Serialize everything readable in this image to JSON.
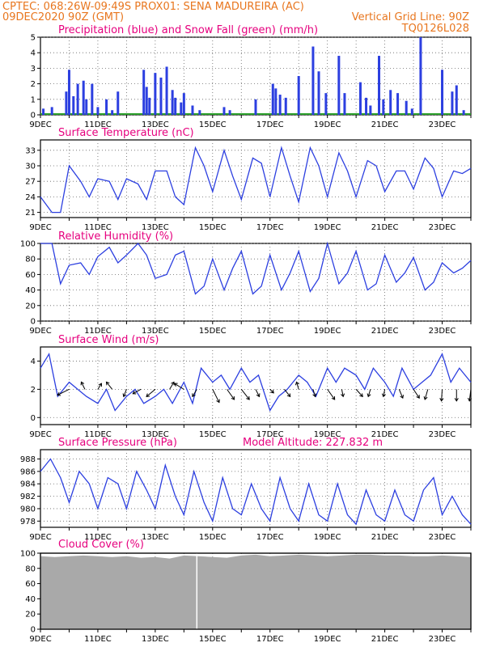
{
  "header": {
    "line1": "CPTEC:   068:26W-09:49S   PROX01: SENA MADUREIRA (AC)",
    "line2_left": "09DEC2020 90Z (GMT)",
    "line2_right": "Vertical Grid Line: 90Z",
    "code": "TQ0126L028"
  },
  "x_tick_labels": [
    "9DEC",
    "11DEC",
    "13DEC",
    "15DEC",
    "17DEC",
    "19DEC",
    "21DEC",
    "23DEC"
  ],
  "x_tick_days": [
    9,
    11,
    13,
    15,
    17,
    19,
    21,
    23
  ],
  "x_range_days": [
    9,
    24
  ],
  "colors": {
    "header": "#e8761e",
    "panel_title": "#e6007e",
    "line": "#2c3fe0",
    "snow": "#2ca02c",
    "cloud": "#a9a9a9",
    "vertical_line": "#ffffff"
  },
  "panels": {
    "precip": {
      "title": "Precipitation (blue) and Snow Fall (green) (mm/h)"
    },
    "temp": {
      "title": "Surface Temperature (nC)"
    },
    "rh": {
      "title": "Relative Humidity (%)"
    },
    "wind": {
      "title": "Surface Wind (m/s)"
    },
    "pres": {
      "title": "Surface Pressure (hPa)",
      "extra": "Model Altitude: 227.832 m"
    },
    "cloud": {
      "title": "Cloud Cover (%)"
    }
  },
  "chart_data": [
    {
      "type": "bar",
      "title": "Precipitation (blue) and Snow Fall (green) (mm/h)",
      "ylim": [
        0,
        5
      ],
      "yticks": [
        0,
        1,
        2,
        3,
        4,
        5
      ],
      "x_unit": "day of December 2020",
      "x": [
        9.1,
        9.4,
        9.9,
        10.0,
        10.15,
        10.3,
        10.5,
        10.6,
        10.8,
        11.0,
        11.3,
        11.5,
        11.7,
        12.6,
        12.7,
        12.8,
        13.0,
        13.2,
        13.4,
        13.6,
        13.7,
        13.9,
        14.0,
        14.3,
        14.55,
        15.4,
        15.6,
        16.5,
        17.1,
        17.2,
        17.35,
        17.55,
        18.0,
        18.5,
        18.7,
        18.95,
        19.4,
        19.6,
        20.15,
        20.35,
        20.5,
        20.8,
        20.95,
        21.2,
        21.45,
        21.75,
        21.95,
        22.25,
        23.0,
        23.35,
        23.5,
        23.75
      ],
      "values": [
        0.4,
        0.5,
        1.5,
        2.9,
        1.2,
        2.0,
        2.2,
        1.0,
        2.0,
        0.5,
        1.0,
        0.3,
        1.5,
        2.9,
        1.8,
        1.1,
        2.7,
        2.4,
        3.1,
        1.6,
        1.1,
        0.8,
        1.4,
        0.6,
        0.3,
        0.5,
        0.3,
        1.0,
        2.0,
        1.7,
        1.3,
        1.1,
        2.5,
        4.4,
        2.8,
        1.4,
        3.8,
        1.4,
        2.1,
        1.1,
        0.6,
        3.8,
        1.0,
        1.6,
        1.4,
        0.9,
        0.4,
        5.0,
        2.9,
        1.5,
        1.9,
        0.3
      ],
      "snow_values": [
        0,
        0,
        0,
        0,
        0,
        0,
        0,
        0,
        0,
        0,
        0,
        0,
        0,
        0,
        0,
        0,
        0,
        0,
        0,
        0,
        0,
        0,
        0,
        0,
        0,
        0,
        0,
        0,
        0,
        0,
        0,
        0,
        0,
        0,
        0,
        0,
        0,
        0,
        0,
        0,
        0,
        0,
        0,
        0,
        0,
        0,
        0,
        0,
        0,
        0,
        0,
        0
      ]
    },
    {
      "type": "line",
      "title": "Surface Temperature (nC)",
      "ylim": [
        20,
        35
      ],
      "yticks": [
        21,
        24,
        27,
        30,
        33
      ],
      "x": [
        9.0,
        9.4,
        9.7,
        10.0,
        10.4,
        10.7,
        11.0,
        11.4,
        11.7,
        12.0,
        12.4,
        12.7,
        13.0,
        13.4,
        13.7,
        14.0,
        14.4,
        14.7,
        15.0,
        15.4,
        15.7,
        16.0,
        16.4,
        16.7,
        17.0,
        17.4,
        17.7,
        18.0,
        18.4,
        18.7,
        19.0,
        19.4,
        19.7,
        20.0,
        20.4,
        20.7,
        21.0,
        21.4,
        21.7,
        22.0,
        22.4,
        22.7,
        23.0,
        23.4,
        23.7,
        24.0
      ],
      "values": [
        24.0,
        21.0,
        21.0,
        30.0,
        27.0,
        24.0,
        27.5,
        27.0,
        23.5,
        27.5,
        26.5,
        23.5,
        29.0,
        29.0,
        24.0,
        22.5,
        33.5,
        30.0,
        25.0,
        33.0,
        28.0,
        23.5,
        31.5,
        30.5,
        24.0,
        33.5,
        28.0,
        23.0,
        33.5,
        30.0,
        24.0,
        32.5,
        29.0,
        24.0,
        31.0,
        30.0,
        25.0,
        29.0,
        29.0,
        25.5,
        31.5,
        29.5,
        24.0,
        29.0,
        28.5,
        29.5
      ]
    },
    {
      "type": "line",
      "title": "Relative Humidity (%)",
      "ylim": [
        0,
        100
      ],
      "yticks": [
        0,
        20,
        40,
        60,
        80,
        100
      ],
      "x": [
        9.0,
        9.4,
        9.7,
        10.0,
        10.4,
        10.7,
        11.0,
        11.4,
        11.7,
        12.0,
        12.4,
        12.7,
        13.0,
        13.4,
        13.7,
        14.0,
        14.4,
        14.7,
        15.0,
        15.4,
        15.7,
        16.0,
        16.4,
        16.7,
        17.0,
        17.4,
        17.7,
        18.0,
        18.4,
        18.7,
        19.0,
        19.4,
        19.7,
        20.0,
        20.4,
        20.7,
        21.0,
        21.4,
        21.7,
        22.0,
        22.4,
        22.7,
        23.0,
        23.4,
        23.7,
        24.0
      ],
      "values": [
        100.0,
        100.0,
        48.0,
        72.0,
        75.0,
        60.0,
        83.0,
        95.0,
        75.0,
        85.0,
        100.0,
        85.0,
        55.0,
        60.0,
        85.0,
        90.0,
        35.0,
        45.0,
        80.0,
        40.0,
        68.0,
        90.0,
        35.0,
        45.0,
        85.0,
        40.0,
        62.0,
        90.0,
        38.0,
        55.0,
        100.0,
        48.0,
        62.0,
        90.0,
        40.0,
        48.0,
        85.0,
        50.0,
        62.0,
        82.0,
        40.0,
        50.0,
        75.0,
        62.0,
        68.0,
        78.0
      ]
    },
    {
      "type": "line",
      "title": "Surface Wind (m/s)",
      "ylim": [
        -0.5,
        5.0
      ],
      "yticks": [
        0,
        2,
        4
      ],
      "x": [
        9.0,
        9.3,
        9.6,
        10.0,
        10.3,
        10.6,
        11.0,
        11.3,
        11.6,
        12.0,
        12.3,
        12.6,
        13.0,
        13.3,
        13.6,
        14.0,
        14.3,
        14.6,
        15.0,
        15.3,
        15.6,
        16.0,
        16.3,
        16.6,
        17.0,
        17.3,
        17.6,
        18.0,
        18.3,
        18.6,
        19.0,
        19.3,
        19.6,
        20.0,
        20.3,
        20.6,
        21.0,
        21.3,
        21.6,
        22.0,
        22.3,
        22.6,
        23.0,
        23.3,
        23.6,
        24.0
      ],
      "values": [
        3.5,
        4.5,
        1.5,
        2.5,
        2.0,
        1.5,
        1.0,
        2.0,
        0.5,
        1.5,
        2.0,
        1.0,
        1.5,
        2.0,
        1.0,
        2.5,
        1.0,
        3.5,
        2.5,
        3.0,
        2.0,
        3.5,
        2.5,
        3.0,
        0.5,
        1.5,
        2.0,
        3.0,
        2.5,
        1.5,
        3.5,
        2.5,
        3.5,
        3.0,
        2.0,
        3.5,
        2.5,
        1.5,
        3.5,
        2.0,
        2.5,
        3.0,
        4.5,
        2.5,
        3.5,
        2.5
      ],
      "vectors": {
        "x": [
          10.0,
          10.55,
          11.0,
          11.5,
          12.0,
          12.5,
          13.0,
          13.5,
          14.0,
          14.45,
          15.0,
          15.5,
          16.0,
          16.5,
          17.0,
          17.5,
          18.0,
          18.5,
          19.0,
          19.5,
          20.0,
          20.5,
          21.0,
          21.5,
          22.0,
          22.5,
          23.0,
          23.5,
          24.0
        ],
        "u": [
          -1.6,
          -0.5,
          0.5,
          -0.8,
          -0.4,
          -1.1,
          -1.2,
          0.6,
          -1.3,
          -0.6,
          0.9,
          1.0,
          1.1,
          0.5,
          0.5,
          0.8,
          -0.3,
          0.3,
          1.0,
          0.2,
          0.9,
          -0.3,
          -0.2,
          0.5,
          0.8,
          -0.4,
          -0.1,
          0.0,
          -0.2
        ],
        "v": [
          -0.8,
          1.0,
          0.8,
          1.0,
          -1.0,
          -0.6,
          -1.0,
          1.0,
          0.8,
          -1.0,
          -1.8,
          -1.4,
          -1.4,
          -1.0,
          -0.5,
          -1.0,
          1.0,
          -1.0,
          -1.4,
          -1.0,
          -1.0,
          -1.0,
          -1.0,
          -1.2,
          -1.2,
          -1.4,
          -1.6,
          -1.6,
          -1.6
        ]
      }
    },
    {
      "type": "line",
      "title": "Surface Pressure (hPa)",
      "ylim": [
        977.0,
        989.5
      ],
      "yticks": [
        978,
        980,
        982,
        984,
        986,
        988
      ],
      "x": [
        9.0,
        9.35,
        9.7,
        10.0,
        10.35,
        10.7,
        11.0,
        11.35,
        11.7,
        12.0,
        12.35,
        12.7,
        13.0,
        13.35,
        13.7,
        14.0,
        14.35,
        14.7,
        15.0,
        15.35,
        15.7,
        16.0,
        16.35,
        16.7,
        17.0,
        17.35,
        17.7,
        18.0,
        18.35,
        18.7,
        19.0,
        19.35,
        19.7,
        20.0,
        20.35,
        20.7,
        21.0,
        21.35,
        21.7,
        22.0,
        22.35,
        22.7,
        23.0,
        23.35,
        23.7,
        24.0
      ],
      "values": [
        986.0,
        988.0,
        985.0,
        981.0,
        986.0,
        984.0,
        980.0,
        985.0,
        984.0,
        980.0,
        986.0,
        983.0,
        980.0,
        987.0,
        982.0,
        979.0,
        986.0,
        981.0,
        978.0,
        985.0,
        980.0,
        979.0,
        984.0,
        980.0,
        978.0,
        985.0,
        980.0,
        978.0,
        984.0,
        979.0,
        978.0,
        984.0,
        979.0,
        977.5,
        983.0,
        979.0,
        978.0,
        983.0,
        979.0,
        978.0,
        983.0,
        985.0,
        979.0,
        982.0,
        979.0,
        977.5
      ]
    },
    {
      "type": "area",
      "title": "Cloud Cover (%)",
      "ylim": [
        0,
        100
      ],
      "yticks": [
        0,
        20,
        40,
        60,
        80,
        100
      ],
      "x": [
        9.0,
        9.5,
        10.0,
        10.5,
        11.0,
        11.5,
        12.0,
        12.5,
        13.0,
        13.5,
        14.0,
        14.5,
        15.0,
        15.5,
        16.0,
        16.5,
        17.0,
        17.5,
        18.0,
        18.5,
        19.0,
        19.5,
        20.0,
        20.5,
        21.0,
        21.5,
        22.0,
        22.5,
        23.0,
        23.5,
        24.0
      ],
      "values": [
        96,
        95,
        96,
        97,
        96,
        95,
        96,
        94,
        95,
        93,
        97,
        96,
        95,
        94,
        97,
        98,
        96,
        97,
        98,
        97,
        96,
        97,
        98,
        98,
        97,
        97,
        96,
        96,
        97,
        96,
        95
      ],
      "vertical_line_x": 14.45
    }
  ]
}
